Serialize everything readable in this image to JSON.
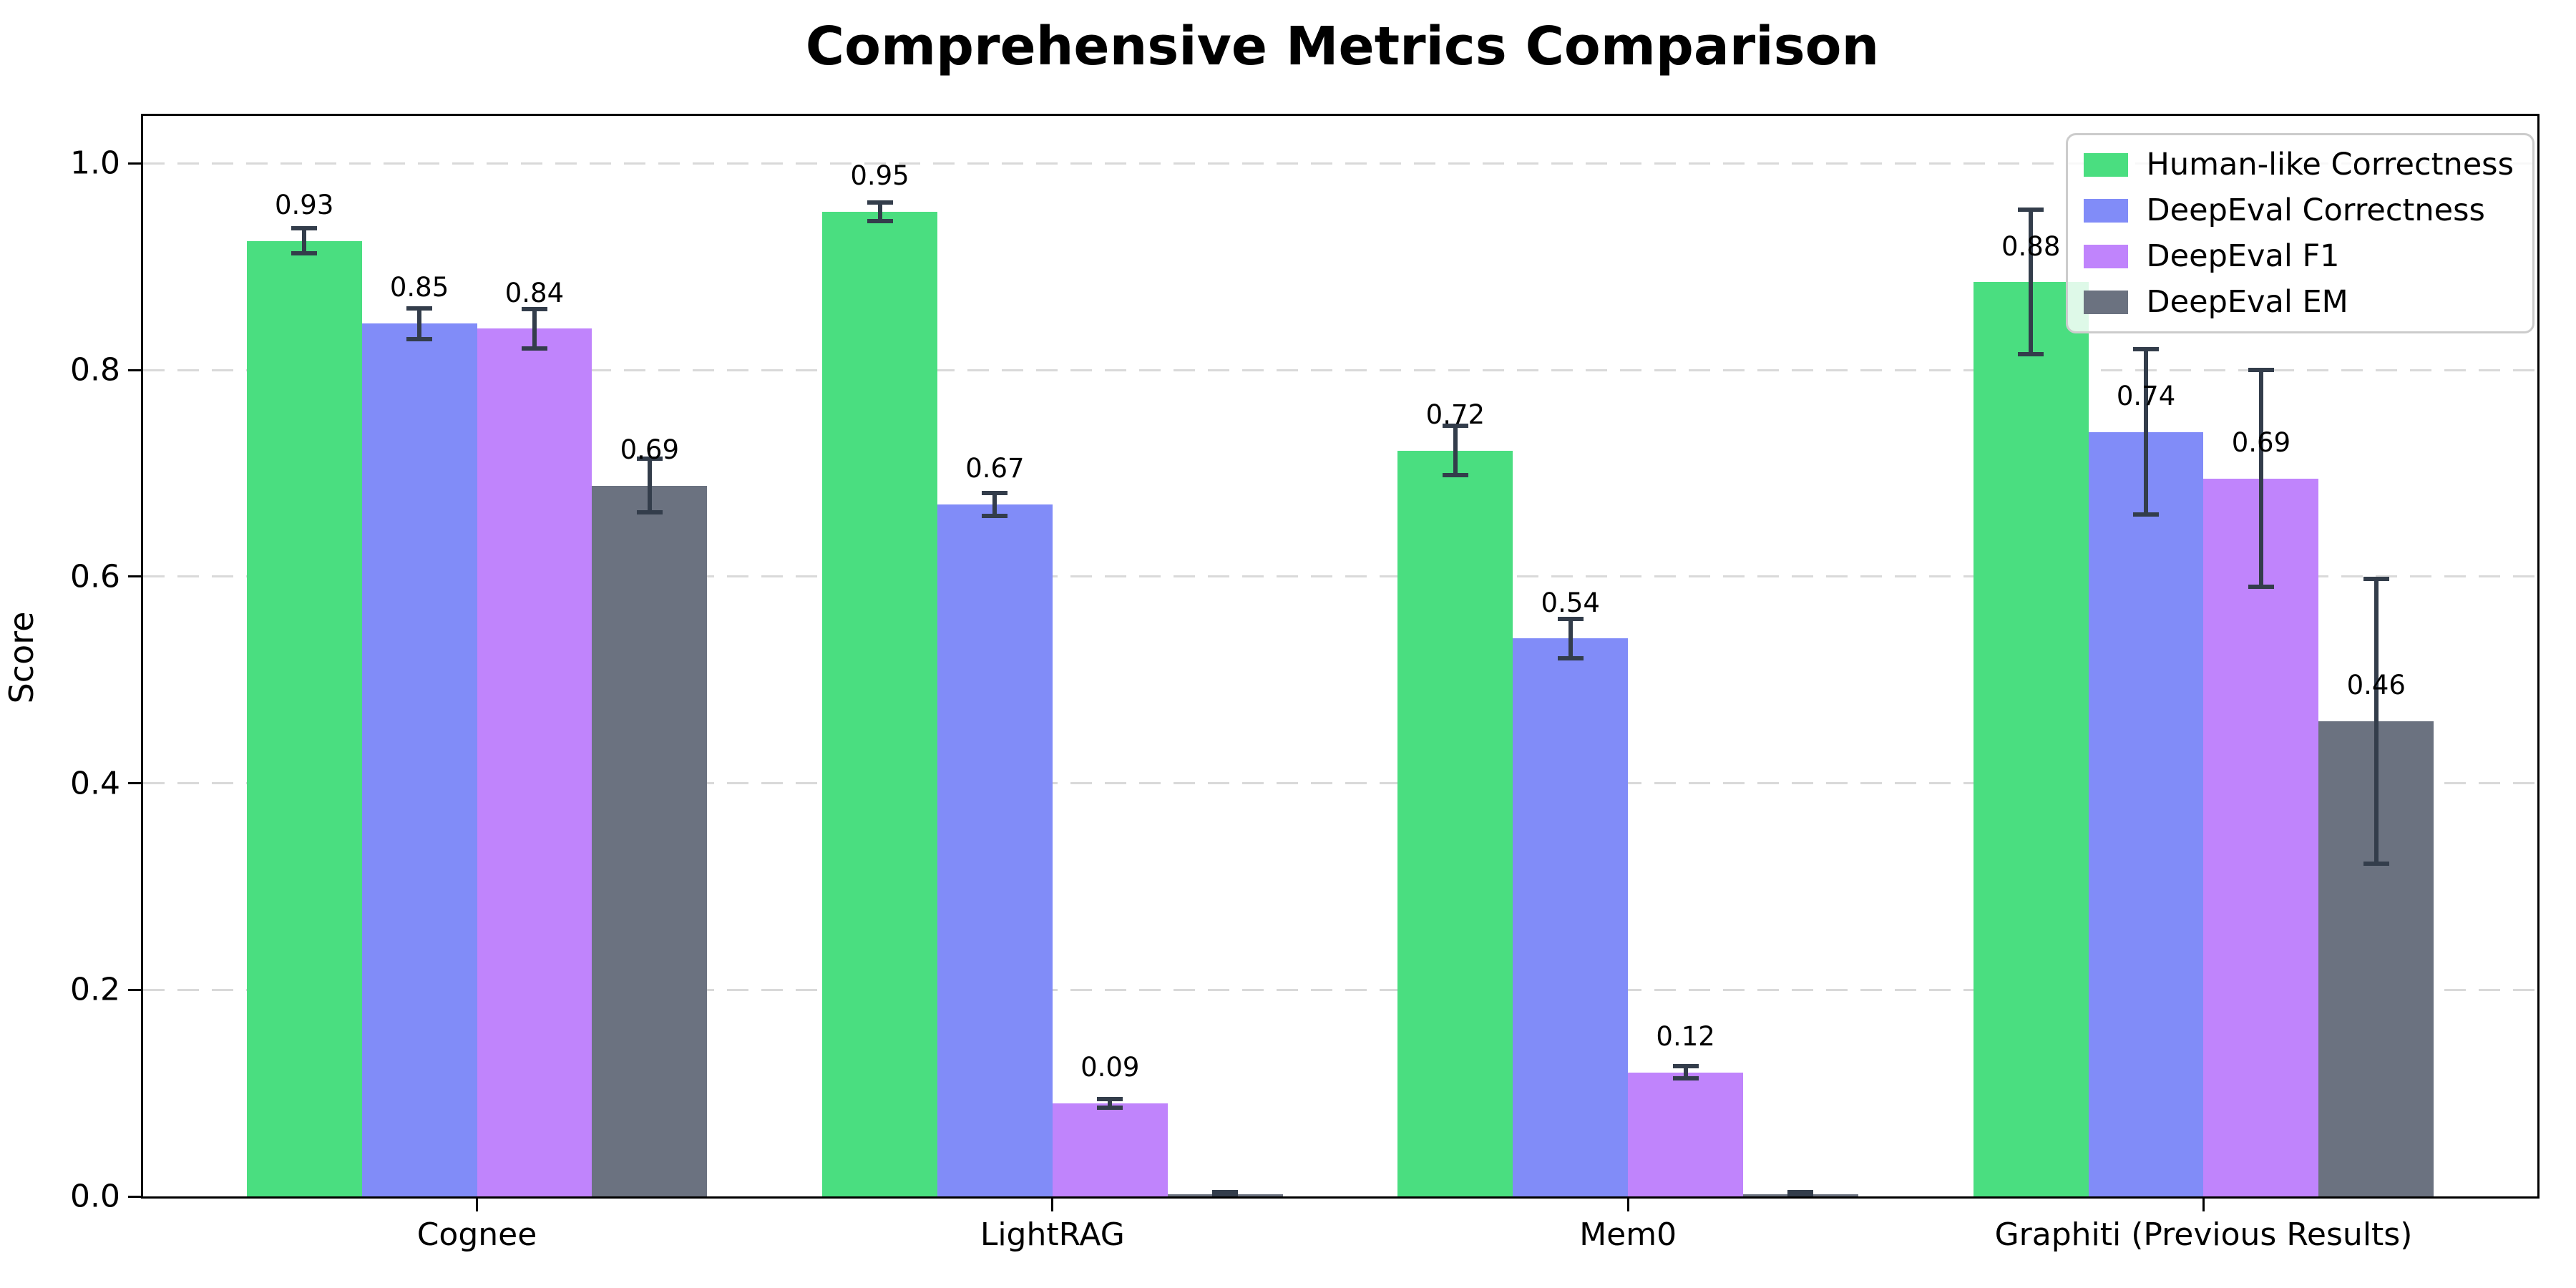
{
  "chart_data": {
    "type": "bar",
    "title": "Comprehensive Metrics Comparison",
    "ylabel": "Score",
    "xlabel": "",
    "categories": [
      "Cognee",
      "LightRAG",
      "Mem0",
      "Graphiti (Previous Results)"
    ],
    "series": [
      {
        "name": "Human-like Correctness",
        "color": "#4ade80",
        "values": [
          0.925,
          0.953,
          0.722,
          0.885
        ],
        "errors": [
          0.014,
          0.011,
          0.026,
          0.072
        ],
        "labels": [
          "0.93",
          "0.95",
          "0.72",
          "0.88"
        ]
      },
      {
        "name": "DeepEval Correctness",
        "color": "#818cf8",
        "values": [
          0.845,
          0.67,
          0.54,
          0.74
        ],
        "errors": [
          0.017,
          0.013,
          0.021,
          0.082
        ],
        "labels": [
          "0.85",
          "0.67",
          "0.54",
          "0.74"
        ]
      },
      {
        "name": "DeepEval F1",
        "color": "#c084fc",
        "values": [
          0.84,
          0.09,
          0.12,
          0.695
        ],
        "errors": [
          0.021,
          0.006,
          0.008,
          0.107
        ],
        "labels": [
          "0.84",
          "0.09",
          "0.12",
          "0.69"
        ]
      },
      {
        "name": "DeepEval EM",
        "color": "#6b7280",
        "values": [
          0.688,
          0.002,
          0.002,
          0.46
        ],
        "errors": [
          0.028,
          0.004,
          0.004,
          0.14
        ],
        "labels": [
          "0.69",
          null,
          null,
          "0.46"
        ]
      }
    ],
    "yticks": [
      {
        "v": 0.0,
        "label": "0.0"
      },
      {
        "v": 0.2,
        "label": "0.2"
      },
      {
        "v": 0.4,
        "label": "0.4"
      },
      {
        "v": 0.6,
        "label": "0.6"
      },
      {
        "v": 0.8,
        "label": "0.8"
      },
      {
        "v": 1.0,
        "label": "1.0"
      }
    ],
    "ylim": [
      0,
      1.046
    ],
    "xlim": [
      -0.58,
      3.58
    ],
    "bar_width_units": 0.2,
    "grid": "horizontal-dashed",
    "legend_position": "upper-right",
    "colors": {
      "error_bar": "#333d4b",
      "grid": "#d9d9d9",
      "spine": "#000000",
      "background": "#ffffff"
    }
  }
}
